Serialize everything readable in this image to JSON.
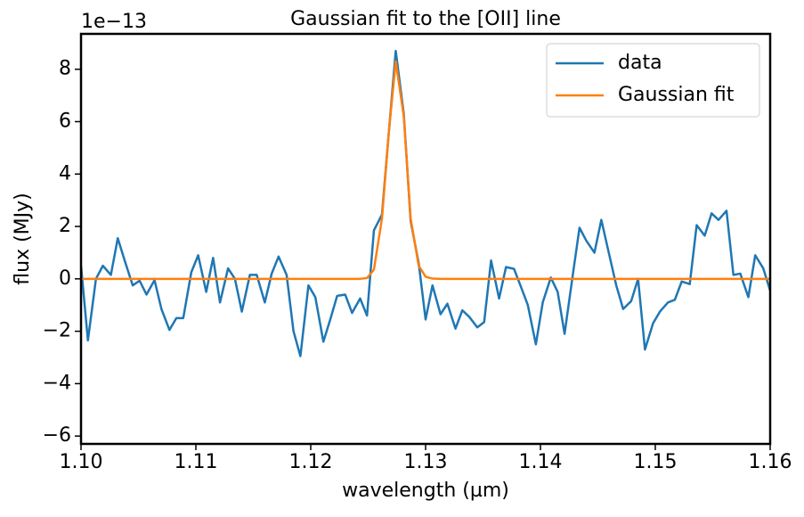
{
  "chart_data": {
    "type": "line",
    "title": "Gaussian fit to the [OII] line",
    "xlabel": "wavelength (µm)",
    "ylabel": "flux (MJy)",
    "offset_text": "1e−13",
    "x": [
      1.1,
      1.1006,
      1.1013,
      1.1019,
      1.1026,
      1.1032,
      1.1038,
      1.1045,
      1.1051,
      1.1057,
      1.1064,
      1.107,
      1.1077,
      1.1083,
      1.1089,
      1.1096,
      1.1102,
      1.1109,
      1.1115,
      1.1121,
      1.1128,
      1.1134,
      1.114,
      1.1147,
      1.1153,
      1.116,
      1.1166,
      1.1172,
      1.1179,
      1.1185,
      1.1191,
      1.1198,
      1.1204,
      1.1211,
      1.1217,
      1.1223,
      1.123,
      1.1236,
      1.1243,
      1.1249,
      1.1255,
      1.1262,
      1.1268,
      1.1274,
      1.1281,
      1.1287,
      1.1294,
      1.13,
      1.1306,
      1.1313,
      1.1319,
      1.1326,
      1.1332,
      1.1338,
      1.1345,
      1.1351,
      1.1357,
      1.1364,
      1.137,
      1.1377,
      1.1383,
      1.1389,
      1.1396,
      1.1402,
      1.1409,
      1.1415,
      1.1421,
      1.1428,
      1.1434,
      1.144,
      1.1447,
      1.1453,
      1.146,
      1.1466,
      1.1472,
      1.1479,
      1.1485,
      1.1491,
      1.1498,
      1.1504,
      1.1511,
      1.1517,
      1.1523,
      1.153,
      1.1536,
      1.1543,
      1.1549,
      1.1555,
      1.1562,
      1.1568,
      1.1574,
      1.1581,
      1.1587,
      1.1594,
      1.16
    ],
    "series": [
      {
        "name": "data",
        "color": "#1f77b4",
        "values": [
          0.5,
          -2.35,
          0,
          0.5,
          0.15,
          1.55,
          0.7,
          -0.25,
          -0.07,
          -0.6,
          -0.05,
          -1.15,
          -1.95,
          -1.5,
          -1.5,
          0.25,
          0.9,
          -0.5,
          0.8,
          -0.9,
          0.4,
          0,
          -1.25,
          0.15,
          0.15,
          -0.9,
          0.2,
          0.85,
          0.15,
          -2,
          -2.95,
          -0.25,
          -0.7,
          -2.4,
          -1.55,
          -0.65,
          -0.6,
          -1.3,
          -0.75,
          -1.4,
          1.85,
          2.45,
          5.6,
          8.7,
          6.3,
          2.2,
          0.6,
          -1.55,
          -0.25,
          -1.35,
          -0.95,
          -1.9,
          -1.2,
          -1.45,
          -1.85,
          -1.65,
          0.7,
          -0.75,
          0.45,
          0.38,
          -0.3,
          -1,
          -2.5,
          -0.9,
          0.05,
          -0.5,
          -2.1,
          0.1,
          1.95,
          1.45,
          1,
          2.25,
          0.9,
          -0.25,
          -1.15,
          -0.85,
          0,
          -2.7,
          -1.7,
          -1.25,
          -0.9,
          -0.8,
          -0.1,
          -0.2,
          2.05,
          1.65,
          2.5,
          2.25,
          2.6,
          0.15,
          0.2,
          -0.7,
          0.9,
          0.4,
          -0.45
        ]
      },
      {
        "name": "Gaussian fit",
        "color": "#ff7f0e",
        "values": [
          0,
          0,
          0,
          0,
          0,
          0,
          0,
          0,
          0,
          0,
          0,
          0,
          0,
          0,
          0,
          0,
          0,
          0,
          0,
          0,
          0,
          0,
          0,
          0,
          0,
          0,
          0,
          0,
          0,
          0,
          0,
          0,
          0,
          0,
          0,
          0,
          0,
          0,
          0,
          0.03,
          0.35,
          2.3,
          5.6,
          8.3,
          6.2,
          2.3,
          0.5,
          0.08,
          0.01,
          0,
          0,
          0,
          0,
          0,
          0,
          0,
          0,
          0,
          0,
          0,
          0,
          0,
          0,
          0,
          0,
          0,
          0,
          0,
          0,
          0,
          0,
          0,
          0,
          0,
          0,
          0,
          0,
          0,
          0,
          0,
          0,
          0,
          0,
          0,
          0,
          0,
          0,
          0,
          0,
          0,
          0,
          0,
          0,
          0,
          0
        ]
      }
    ],
    "xlim": [
      1.1,
      1.16
    ],
    "ylim": [
      -6.3,
      9.35
    ],
    "xticks": [
      {
        "value": 1.1,
        "label": "1.10"
      },
      1.11,
      1.12,
      1.13,
      1.14,
      1.15,
      1.16
    ],
    "yticks": [
      {
        "value": -6,
        "label": "−6"
      },
      {
        "value": -4,
        "label": "−4"
      },
      {
        "value": -2,
        "label": "−2"
      },
      0,
      2,
      4,
      6,
      8
    ],
    "legend": "upper right",
    "grid": false
  }
}
